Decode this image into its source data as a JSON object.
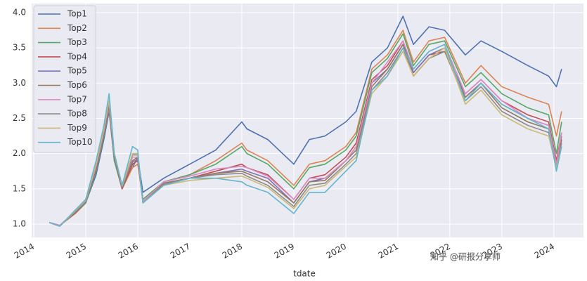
{
  "chart_data": {
    "type": "line",
    "xlabel": "tdate",
    "watermark": "知乎 @研报分享师",
    "x": [
      2014.3,
      2014.5,
      2014.8,
      2015.0,
      2015.2,
      2015.35,
      2015.45,
      2015.55,
      2015.7,
      2015.9,
      2016.0,
      2016.1,
      2016.5,
      2017.0,
      2017.5,
      2018.0,
      2018.1,
      2018.5,
      2019.0,
      2019.3,
      2019.6,
      2020.0,
      2020.2,
      2020.5,
      2020.8,
      2021.1,
      2021.3,
      2021.6,
      2021.9,
      2022.3,
      2022.6,
      2023.0,
      2023.5,
      2023.9,
      2024.05,
      2024.15
    ],
    "xlim": [
      2013.96,
      2024.57
    ],
    "xticks": [
      2014,
      2015,
      2016,
      2017,
      2018,
      2019,
      2020,
      2021,
      2022,
      2023,
      2024
    ],
    "ylim": [
      0.81,
      4.13
    ],
    "yticks": [
      {
        "value": 1.0,
        "label": "1.0"
      },
      {
        "value": 1.5,
        "label": "1.5"
      },
      {
        "value": 2.0,
        "label": "2.0"
      },
      {
        "value": 2.5,
        "label": "2.5"
      },
      {
        "value": 3.0,
        "label": "3.0"
      },
      {
        "value": 3.5,
        "label": "3.5"
      },
      {
        "value": 4.0,
        "label": "4.0"
      }
    ],
    "grid": true,
    "legend": "upper left",
    "series": [
      {
        "name": "Top1",
        "color": "#4c72b0",
        "values": [
          1.02,
          0.98,
          1.15,
          1.3,
          1.7,
          2.2,
          2.6,
          1.9,
          1.55,
          1.8,
          1.95,
          1.45,
          1.65,
          1.85,
          2.05,
          2.45,
          2.35,
          2.2,
          1.85,
          2.2,
          2.25,
          2.45,
          2.6,
          3.3,
          3.5,
          3.95,
          3.55,
          3.8,
          3.75,
          3.4,
          3.6,
          3.45,
          3.25,
          3.1,
          2.95,
          3.2
        ]
      },
      {
        "name": "Top2",
        "color": "#dd8452",
        "values": [
          1.02,
          0.98,
          1.15,
          1.3,
          1.75,
          2.25,
          2.65,
          1.9,
          1.5,
          1.8,
          1.85,
          1.35,
          1.6,
          1.7,
          1.9,
          2.15,
          2.05,
          1.9,
          1.55,
          1.85,
          1.9,
          2.1,
          2.3,
          3.2,
          3.4,
          3.75,
          3.3,
          3.6,
          3.65,
          3.0,
          3.25,
          2.95,
          2.8,
          2.7,
          2.25,
          2.6
        ]
      },
      {
        "name": "Top3",
        "color": "#55a868",
        "values": [
          1.02,
          0.98,
          1.16,
          1.3,
          1.75,
          2.25,
          2.7,
          1.9,
          1.5,
          1.85,
          1.9,
          1.35,
          1.6,
          1.7,
          1.85,
          2.1,
          2.0,
          1.85,
          1.5,
          1.8,
          1.85,
          2.05,
          2.25,
          3.15,
          3.35,
          3.7,
          3.25,
          3.55,
          3.6,
          2.95,
          3.15,
          2.85,
          2.65,
          2.55,
          2.0,
          2.45
        ]
      },
      {
        "name": "Top4",
        "color": "#c44e52",
        "values": [
          1.02,
          0.98,
          1.16,
          1.32,
          1.78,
          2.28,
          2.7,
          1.95,
          1.5,
          1.85,
          1.9,
          1.32,
          1.58,
          1.65,
          1.75,
          1.85,
          1.8,
          1.7,
          1.35,
          1.65,
          1.7,
          1.95,
          2.15,
          3.05,
          3.25,
          3.6,
          3.15,
          3.4,
          3.45,
          2.85,
          3.05,
          2.75,
          2.55,
          2.45,
          1.9,
          2.3
        ]
      },
      {
        "name": "Top5",
        "color": "#8172b3",
        "values": [
          1.02,
          0.98,
          1.17,
          1.32,
          1.8,
          2.3,
          2.7,
          1.95,
          1.52,
          1.88,
          1.92,
          1.32,
          1.58,
          1.65,
          1.72,
          1.78,
          1.75,
          1.65,
          1.3,
          1.6,
          1.65,
          1.9,
          2.1,
          3.0,
          3.2,
          3.55,
          3.15,
          3.4,
          3.5,
          2.8,
          3.0,
          2.7,
          2.5,
          2.4,
          1.85,
          2.25
        ]
      },
      {
        "name": "Top6",
        "color": "#937860",
        "values": [
          1.02,
          0.98,
          1.17,
          1.33,
          1.8,
          2.3,
          2.75,
          1.95,
          1.52,
          1.9,
          1.95,
          1.32,
          1.58,
          1.65,
          1.72,
          1.75,
          1.72,
          1.6,
          1.3,
          1.6,
          1.62,
          1.9,
          2.05,
          2.95,
          3.2,
          3.55,
          3.1,
          3.35,
          3.45,
          2.8,
          3.0,
          2.65,
          2.45,
          2.35,
          1.8,
          2.2
        ]
      },
      {
        "name": "Top7",
        "color": "#da8bc3",
        "values": [
          1.02,
          0.98,
          1.18,
          1.33,
          1.82,
          2.32,
          2.75,
          1.98,
          1.53,
          1.95,
          1.95,
          1.32,
          1.6,
          1.68,
          1.78,
          1.82,
          1.8,
          1.68,
          1.35,
          1.65,
          1.65,
          1.9,
          2.1,
          3.0,
          3.3,
          3.6,
          3.2,
          3.45,
          3.55,
          2.85,
          3.05,
          2.75,
          2.5,
          2.4,
          1.85,
          2.3
        ]
      },
      {
        "name": "Top8",
        "color": "#8c8c8c",
        "values": [
          1.02,
          0.97,
          1.18,
          1.34,
          1.85,
          2.35,
          2.75,
          1.98,
          1.53,
          1.98,
          1.98,
          1.3,
          1.56,
          1.65,
          1.7,
          1.72,
          1.68,
          1.55,
          1.25,
          1.55,
          1.58,
          1.85,
          2.0,
          2.9,
          3.15,
          3.5,
          3.1,
          3.35,
          3.45,
          2.75,
          2.95,
          2.6,
          2.4,
          2.3,
          1.8,
          2.15
        ]
      },
      {
        "name": "Top9",
        "color": "#ccb974",
        "values": [
          1.02,
          0.97,
          1.19,
          1.34,
          1.85,
          2.35,
          2.75,
          2.0,
          1.54,
          2.0,
          2.0,
          1.3,
          1.55,
          1.62,
          1.65,
          1.68,
          1.65,
          1.52,
          1.22,
          1.5,
          1.55,
          1.82,
          1.95,
          2.85,
          3.1,
          3.45,
          3.1,
          3.35,
          3.5,
          2.7,
          2.9,
          2.55,
          2.35,
          2.25,
          1.8,
          2.1
        ]
      },
      {
        "name": "Top10",
        "color": "#64b5cd",
        "values": [
          1.02,
          0.97,
          1.2,
          1.35,
          1.9,
          2.4,
          2.85,
          2.0,
          1.55,
          2.1,
          2.05,
          1.3,
          1.55,
          1.65,
          1.65,
          1.6,
          1.55,
          1.45,
          1.15,
          1.45,
          1.45,
          1.75,
          1.9,
          2.9,
          3.1,
          3.5,
          3.2,
          3.45,
          3.55,
          2.75,
          3.0,
          2.7,
          2.5,
          2.35,
          1.75,
          2.1
        ]
      }
    ]
  }
}
